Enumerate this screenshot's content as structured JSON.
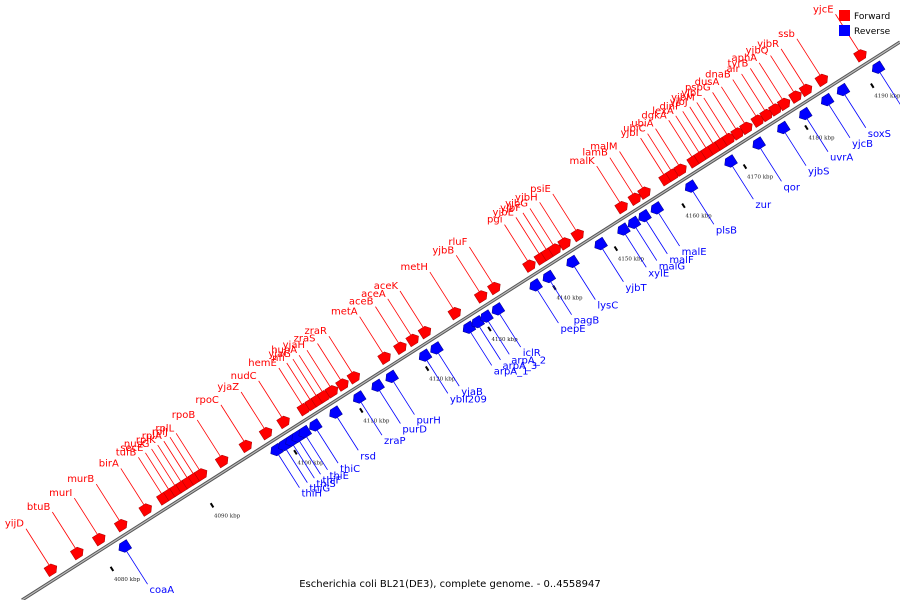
{
  "caption": "Escherichia coli BL21(DE3), complete genome. - 0..4558947",
  "legend": [
    {
      "label": "Forward",
      "color": "#ff0000"
    },
    {
      "label": "Reverse",
      "color": "#0000ff"
    }
  ],
  "colors": {
    "forward": "#ff0000",
    "reverse": "#0000ff",
    "backbone": "#888888"
  },
  "ticks": [
    {
      "label": "4080 kbp",
      "t": 0.089
    },
    {
      "label": "4090 kbp",
      "t": 0.203
    },
    {
      "label": "4100 kbp",
      "t": 0.298
    },
    {
      "label": "4110 kbp",
      "t": 0.373
    },
    {
      "label": "4120 kbp",
      "t": 0.448
    },
    {
      "label": "4130 kbp",
      "t": 0.519
    },
    {
      "label": "4140 kbp",
      "t": 0.593
    },
    {
      "label": "4150 kbp",
      "t": 0.663
    },
    {
      "label": "4160 kbp",
      "t": 0.74
    },
    {
      "label": "4170 kbp",
      "t": 0.81
    },
    {
      "label": "4180 kbp",
      "t": 0.88
    },
    {
      "label": "4190 kbp",
      "t": 0.955
    }
  ],
  "forward_genes": [
    {
      "name": "yijD",
      "t": 0.04
    },
    {
      "name": "btuB",
      "t": 0.07
    },
    {
      "name": "murI",
      "t": 0.095
    },
    {
      "name": "murB",
      "t": 0.12
    },
    {
      "name": "birA",
      "t": 0.148
    },
    {
      "name": "tufB",
      "t": 0.168
    },
    {
      "name": "secE",
      "t": 0.176
    },
    {
      "name": "nusG",
      "t": 0.183
    },
    {
      "name": "rplK",
      "t": 0.19
    },
    {
      "name": "rplA",
      "t": 0.197
    },
    {
      "name": "rplJ",
      "t": 0.204
    },
    {
      "name": "rplL",
      "t": 0.211
    },
    {
      "name": "rpoB",
      "t": 0.235
    },
    {
      "name": "rpoC",
      "t": 0.262
    },
    {
      "name": "yjaZ",
      "t": 0.285
    },
    {
      "name": "nudC",
      "t": 0.305
    },
    {
      "name": "hemE",
      "t": 0.328
    },
    {
      "name": "nfi",
      "t": 0.337
    },
    {
      "name": "yjaG",
      "t": 0.344
    },
    {
      "name": "hupA",
      "t": 0.351
    },
    {
      "name": "yjaH",
      "t": 0.36
    },
    {
      "name": "zraS",
      "t": 0.372
    },
    {
      "name": "zraR",
      "t": 0.385
    },
    {
      "name": "metA",
      "t": 0.42
    },
    {
      "name": "aceB",
      "t": 0.438
    },
    {
      "name": "aceA",
      "t": 0.452
    },
    {
      "name": "aceK",
      "t": 0.466
    },
    {
      "name": "metH",
      "t": 0.5
    },
    {
      "name": "yjbB",
      "t": 0.53
    },
    {
      "name": "rluF",
      "t": 0.545
    },
    {
      "name": "pgi",
      "t": 0.585
    },
    {
      "name": "yjbE",
      "t": 0.598
    },
    {
      "name": "yjbF",
      "t": 0.606
    },
    {
      "name": "yjbG",
      "t": 0.614
    },
    {
      "name": "yjbH",
      "t": 0.625
    },
    {
      "name": "psiE",
      "t": 0.64
    },
    {
      "name": "malK",
      "t": 0.69
    },
    {
      "name": "lamB",
      "t": 0.705
    },
    {
      "name": "malM",
      "t": 0.716
    },
    {
      "name": "yjbI",
      "t": 0.74
    },
    {
      "name": "ubiC",
      "t": 0.748
    },
    {
      "name": "ubiA",
      "t": 0.757
    },
    {
      "name": "dgkA",
      "t": 0.772
    },
    {
      "name": "lexA",
      "t": 0.78
    },
    {
      "name": "dinF",
      "t": 0.788
    },
    {
      "name": "yjbJ",
      "t": 0.796
    },
    {
      "name": "yjbM",
      "t": 0.804
    },
    {
      "name": "yjbL",
      "t": 0.812
    },
    {
      "name": "pspG",
      "t": 0.822
    },
    {
      "name": "dusA",
      "t": 0.832
    },
    {
      "name": "dnaB",
      "t": 0.845
    },
    {
      "name": "alr",
      "t": 0.855
    },
    {
      "name": "tyrB",
      "t": 0.865
    },
    {
      "name": "aphA",
      "t": 0.875
    },
    {
      "name": "yjbQ",
      "t": 0.888
    },
    {
      "name": "yjbR",
      "t": 0.9
    },
    {
      "name": "ssb",
      "t": 0.918
    },
    {
      "name": "yjcE",
      "t": 0.962
    }
  ],
  "reverse_genes": [
    {
      "name": "coaA",
      "t": 0.11
    },
    {
      "name": "thiH",
      "t": 0.283
    },
    {
      "name": "thiG",
      "t": 0.292
    },
    {
      "name": "thiS",
      "t": 0.3
    },
    {
      "name": "thiF",
      "t": 0.307
    },
    {
      "name": "thiE",
      "t": 0.315
    },
    {
      "name": "thiC",
      "t": 0.327
    },
    {
      "name": "rsd",
      "t": 0.35
    },
    {
      "name": "zraP",
      "t": 0.377
    },
    {
      "name": "purD",
      "t": 0.398
    },
    {
      "name": "purH",
      "t": 0.414
    },
    {
      "name": "yblI209",
      "t": 0.452
    },
    {
      "name": "yjaB",
      "t": 0.465
    },
    {
      "name": "arpA_1",
      "t": 0.502
    },
    {
      "name": "arpA_3",
      "t": 0.512
    },
    {
      "name": "arpA_2",
      "t": 0.522
    },
    {
      "name": "iclR",
      "t": 0.535
    },
    {
      "name": "pepE",
      "t": 0.578
    },
    {
      "name": "pagB",
      "t": 0.593
    },
    {
      "name": "lysC",
      "t": 0.62
    },
    {
      "name": "yjbT",
      "t": 0.652
    },
    {
      "name": "xylE",
      "t": 0.678
    },
    {
      "name": "malG",
      "t": 0.69
    },
    {
      "name": "malF",
      "t": 0.702
    },
    {
      "name": "malE",
      "t": 0.716
    },
    {
      "name": "plsB",
      "t": 0.755
    },
    {
      "name": "zur",
      "t": 0.8
    },
    {
      "name": "qor",
      "t": 0.832
    },
    {
      "name": "yjbS",
      "t": 0.86
    },
    {
      "name": "uvrA",
      "t": 0.885
    },
    {
      "name": "yjcB",
      "t": 0.91
    },
    {
      "name": "soxS",
      "t": 0.928
    },
    {
      "name": "yjcF",
      "t": 0.968
    }
  ]
}
